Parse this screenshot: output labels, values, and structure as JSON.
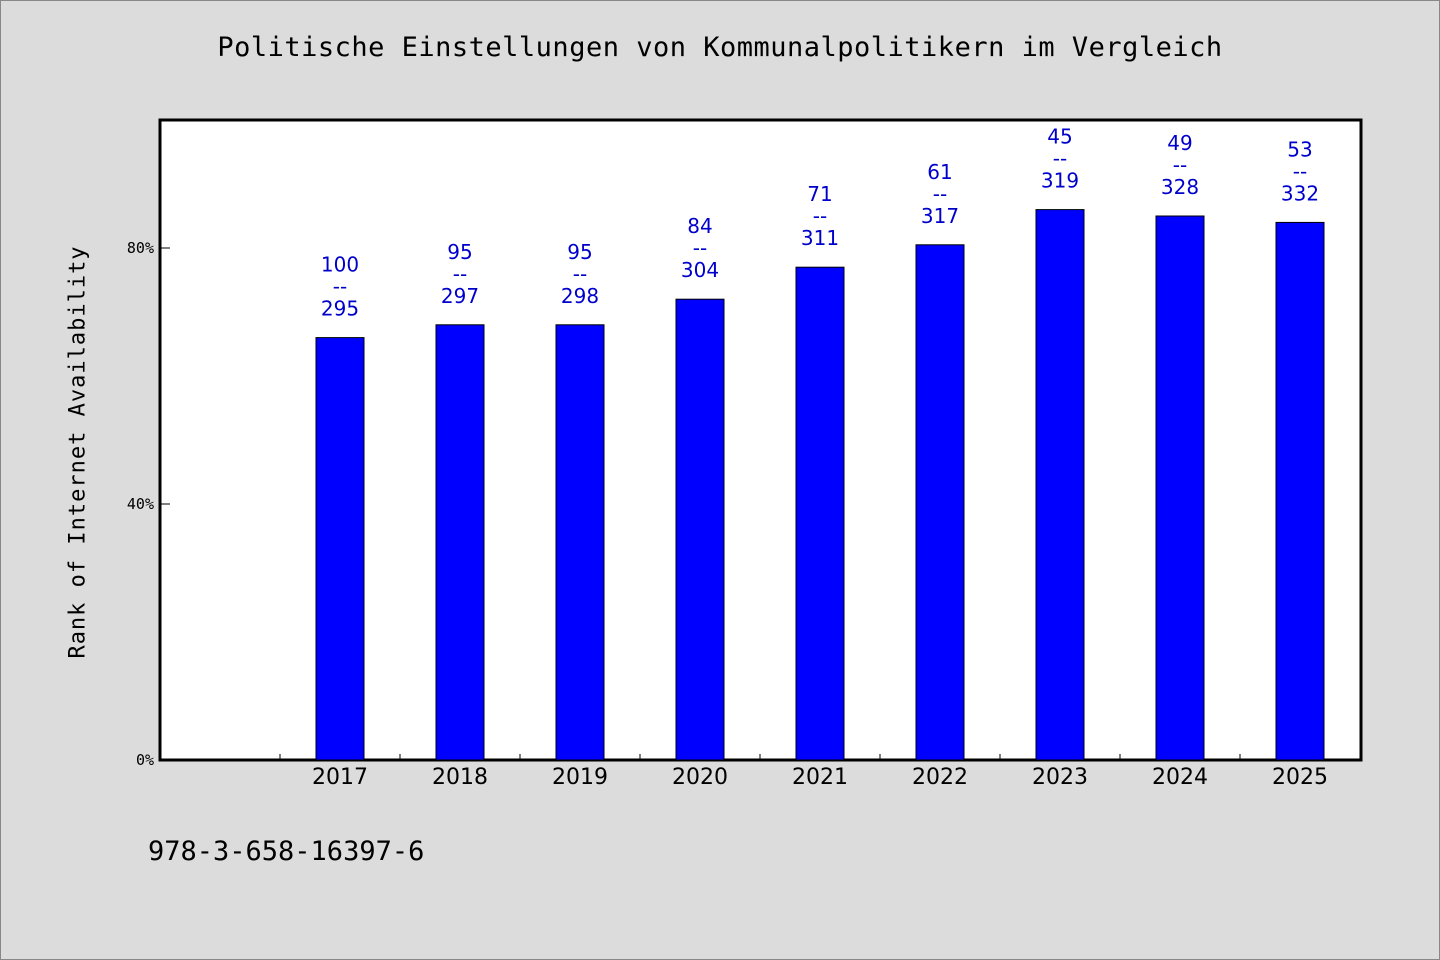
{
  "title": "Politische Einstellungen von Kommunalpolitikern im Vergleich",
  "footer_code": "978-3-658-16397-6",
  "colors": {
    "bar": "#0000ff",
    "label": "#0000cc",
    "background": "#dcdcdc",
    "plot_bg": "#ffffff"
  },
  "chart_data": {
    "type": "bar",
    "title": "Politische Einstellungen von Kommunalpolitikern im Vergleich",
    "xlabel": "",
    "ylabel": "Rank of Internet Availability",
    "categories": [
      "2017",
      "2018",
      "2019",
      "2020",
      "2021",
      "2022",
      "2023",
      "2024",
      "2025"
    ],
    "values": [
      66,
      68,
      68,
      72,
      77,
      80.5,
      86,
      85,
      84
    ],
    "value_unit": "%",
    "labels_top": [
      "100",
      "95",
      "95",
      "84",
      "71",
      "61",
      "45",
      "49",
      "53"
    ],
    "labels_sep": "--",
    "labels_bottom": [
      "295",
      "297",
      "298",
      "304",
      "311",
      "317",
      "319",
      "328",
      "332"
    ],
    "ylim": [
      0,
      100
    ],
    "yticks": [
      0,
      40,
      80
    ],
    "ytick_labels": [
      "0%",
      "40%",
      "80%"
    ],
    "grid": false,
    "legend": "none"
  }
}
